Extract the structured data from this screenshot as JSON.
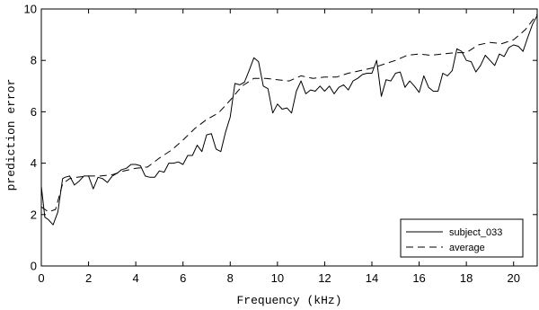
{
  "chart_data": {
    "type": "line",
    "xlabel": "Frequency (kHz)",
    "ylabel": "prediction error",
    "xlim": [
      0,
      21
    ],
    "ylim": [
      0,
      10
    ],
    "xticks": [
      0,
      2,
      4,
      6,
      8,
      10,
      12,
      14,
      16,
      18,
      20
    ],
    "yticks": [
      0,
      2,
      4,
      6,
      8,
      10
    ],
    "xtick_labels": [
      "0",
      "2",
      "4",
      "6",
      "8",
      "10",
      "12",
      "14",
      "16",
      "18",
      "20"
    ],
    "ytick_labels": [
      "0",
      "2",
      "4",
      "6",
      "8",
      "10"
    ],
    "grid": false,
    "legend_position": "bottom-right",
    "series": [
      {
        "name": "subject_033",
        "style": "solid",
        "color": "#000000",
        "x": [
          0,
          0.15,
          0.3,
          0.5,
          0.7,
          0.9,
          1.0,
          1.2,
          1.4,
          1.6,
          1.8,
          2.0,
          2.2,
          2.4,
          2.6,
          2.8,
          3.0,
          3.2,
          3.4,
          3.6,
          3.8,
          4.0,
          4.2,
          4.4,
          4.6,
          4.8,
          5.0,
          5.2,
          5.4,
          5.6,
          5.8,
          6.0,
          6.2,
          6.4,
          6.6,
          6.8,
          7.0,
          7.2,
          7.4,
          7.6,
          7.8,
          8.0,
          8.2,
          8.4,
          8.6,
          8.8,
          9.0,
          9.2,
          9.4,
          9.6,
          9.8,
          10.0,
          10.2,
          10.4,
          10.6,
          10.8,
          11.0,
          11.2,
          11.4,
          11.6,
          11.8,
          12.0,
          12.2,
          12.4,
          12.6,
          12.8,
          13.0,
          13.2,
          13.4,
          13.6,
          13.8,
          14.0,
          14.2,
          14.4,
          14.6,
          14.8,
          15.0,
          15.2,
          15.4,
          15.6,
          15.8,
          16.0,
          16.2,
          16.4,
          16.6,
          16.8,
          17.0,
          17.2,
          17.4,
          17.6,
          17.8,
          18.0,
          18.2,
          18.4,
          18.6,
          18.8,
          19.0,
          19.2,
          19.4,
          19.6,
          19.8,
          20.0,
          20.2,
          20.4,
          20.6,
          20.8,
          21.0
        ],
        "values": [
          3.1,
          1.9,
          1.8,
          1.6,
          2.1,
          3.4,
          3.45,
          3.5,
          3.15,
          3.3,
          3.5,
          3.5,
          3.0,
          3.45,
          3.4,
          3.25,
          3.5,
          3.6,
          3.75,
          3.8,
          3.95,
          3.95,
          3.9,
          3.5,
          3.45,
          3.45,
          3.7,
          3.65,
          4.0,
          4.0,
          4.05,
          3.95,
          4.3,
          4.3,
          4.7,
          4.45,
          5.1,
          5.15,
          4.55,
          4.45,
          5.2,
          5.8,
          7.1,
          7.05,
          7.15,
          7.6,
          8.1,
          7.95,
          7.0,
          6.9,
          5.95,
          6.3,
          6.1,
          6.15,
          5.95,
          6.8,
          7.2,
          6.7,
          6.85,
          6.8,
          7.0,
          6.8,
          7.0,
          6.7,
          6.95,
          7.05,
          6.85,
          7.2,
          7.3,
          7.45,
          7.5,
          7.5,
          8.0,
          6.6,
          7.25,
          7.2,
          7.5,
          7.55,
          6.95,
          7.2,
          7.0,
          6.75,
          7.4,
          6.95,
          6.8,
          6.8,
          7.5,
          7.4,
          7.6,
          8.45,
          8.35,
          8.0,
          7.95,
          7.55,
          7.8,
          8.2,
          8.0,
          7.8,
          8.25,
          8.15,
          8.5,
          8.6,
          8.55,
          8.35,
          8.9,
          9.4,
          9.75
        ]
      },
      {
        "name": "average",
        "style": "dashed",
        "color": "#000000",
        "x": [
          0,
          0.3,
          0.6,
          0.9,
          1.2,
          1.5,
          2.0,
          2.5,
          3.0,
          3.5,
          4.0,
          4.5,
          5.0,
          5.5,
          6.0,
          6.5,
          7.0,
          7.5,
          8.0,
          8.5,
          9.0,
          9.5,
          10.0,
          10.5,
          11.0,
          11.5,
          12.0,
          12.5,
          13.0,
          13.5,
          14.0,
          14.5,
          15.0,
          15.5,
          16.0,
          16.5,
          17.0,
          17.5,
          18.0,
          18.5,
          19.0,
          19.5,
          20.0,
          20.5,
          21.0
        ],
        "values": [
          2.3,
          2.1,
          2.2,
          3.2,
          3.4,
          3.45,
          3.5,
          3.5,
          3.55,
          3.7,
          3.8,
          3.85,
          4.2,
          4.5,
          4.9,
          5.35,
          5.7,
          5.95,
          6.45,
          7.0,
          7.3,
          7.3,
          7.25,
          7.2,
          7.4,
          7.3,
          7.35,
          7.35,
          7.5,
          7.6,
          7.7,
          7.85,
          8.0,
          8.2,
          8.25,
          8.2,
          8.25,
          8.3,
          8.3,
          8.6,
          8.7,
          8.65,
          8.8,
          9.2,
          9.8
        ]
      }
    ]
  }
}
